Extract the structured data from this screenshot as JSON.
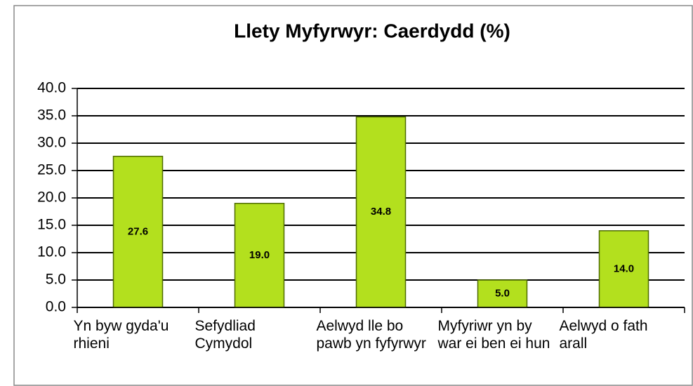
{
  "chart_data": {
    "type": "bar",
    "title": "Llety Myfyrwyr: Caerdydd (%)",
    "categories": [
      "Yn byw gyda'u rhieni",
      "Sefydliad Cymydol",
      "Aelwyd lle bo pawb yn fyfyrwyr",
      "Myfyriwr yn by war ei ben ei hun",
      "Aelwyd o fath arall"
    ],
    "values": [
      27.6,
      19.0,
      34.8,
      5.0,
      14.0
    ],
    "value_labels": [
      "27.6",
      "19.0",
      "34.8",
      "5.0",
      "14.0"
    ],
    "color": "#b3e01e",
    "ylim": [
      0,
      40
    ],
    "yticks": [
      {
        "value": 0,
        "label": "0.0"
      },
      {
        "value": 5,
        "label": "5.0"
      },
      {
        "value": 10,
        "label": "10.0"
      },
      {
        "value": 15,
        "label": "15.0"
      },
      {
        "value": 20,
        "label": "20.0"
      },
      {
        "value": 25,
        "label": "25.0"
      },
      {
        "value": 30,
        "label": "30.0"
      },
      {
        "value": 35,
        "label": "35.0"
      },
      {
        "value": 40,
        "label": "40.0"
      }
    ],
    "grid": true
  }
}
